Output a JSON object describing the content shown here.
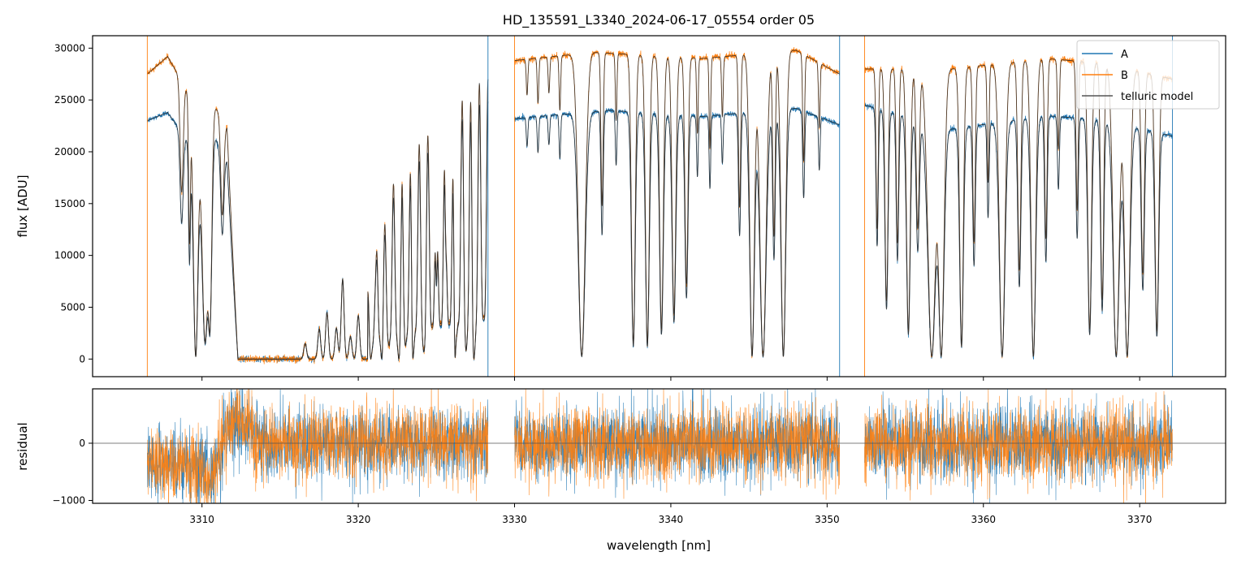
{
  "chart_data": [
    {
      "type": "line",
      "title": "HD_135591_L3340_2024-06-17_05554  order 05",
      "ylabel": "flux [ADU]",
      "xlim": [
        3303.0,
        3375.5
      ],
      "ylim": [
        -1700,
        31200
      ],
      "yticks": [
        0,
        5000,
        10000,
        15000,
        20000,
        25000,
        30000
      ],
      "ytick_labels": [
        "0",
        "5000",
        "10000",
        "15000",
        "20000",
        "25000",
        "30000"
      ],
      "legend": {
        "placement": "top-right",
        "entries": [
          "A",
          "B",
          "telluric model"
        ]
      },
      "segments": [
        [
          3306.5,
          3328.3
        ],
        [
          3330.0,
          3350.8
        ],
        [
          3352.4,
          3372.1
        ]
      ],
      "continuum": {
        "A": [
          [
            3306.5,
            23000
          ],
          [
            3307.8,
            23800
          ],
          [
            3309.2,
            20800
          ],
          [
            3310.8,
            21500
          ],
          [
            3312.3,
            17000
          ],
          [
            3330.0,
            23200
          ],
          [
            3336.0,
            24000
          ],
          [
            3342.0,
            23400
          ],
          [
            3348.0,
            24200
          ],
          [
            3350.8,
            22600
          ],
          [
            3352.4,
            24500
          ],
          [
            3358.0,
            22200
          ],
          [
            3364.0,
            23500
          ],
          [
            3368.0,
            23000
          ],
          [
            3372.1,
            21500
          ]
        ],
        "B": [
          [
            3306.5,
            27500
          ],
          [
            3307.8,
            29200
          ],
          [
            3309.2,
            25500
          ],
          [
            3310.8,
            24500
          ],
          [
            3312.3,
            20500
          ],
          [
            3330.0,
            28800
          ],
          [
            3335.0,
            29600
          ],
          [
            3342.0,
            29000
          ],
          [
            3348.0,
            29800
          ],
          [
            3350.8,
            27500
          ],
          [
            3352.4,
            28000
          ],
          [
            3358.0,
            28000
          ],
          [
            3364.0,
            29000
          ],
          [
            3368.0,
            28500
          ],
          [
            3372.1,
            27000
          ]
        ]
      },
      "absorption_lines": [
        [
          3308.7,
          0.4,
          0.1
        ],
        [
          3309.2,
          0.55,
          0.06
        ],
        [
          3309.6,
          0.99,
          0.15
        ],
        [
          3310.2,
          0.93,
          0.2
        ],
        [
          3310.5,
          0.85,
          0.12
        ],
        [
          3311.3,
          0.4,
          0.1
        ],
        [
          3328.15,
          0.99,
          0.08
        ],
        [
          3330.8,
          0.12,
          0.05
        ],
        [
          3331.5,
          0.15,
          0.05
        ],
        [
          3332.2,
          0.12,
          0.05
        ],
        [
          3332.9,
          0.18,
          0.05
        ],
        [
          3334.3,
          0.99,
          0.22
        ],
        [
          3335.6,
          0.5,
          0.07
        ],
        [
          3336.5,
          0.22,
          0.05
        ],
        [
          3337.6,
          0.95,
          0.12
        ],
        [
          3338.5,
          0.95,
          0.12
        ],
        [
          3339.4,
          0.9,
          0.12
        ],
        [
          3340.2,
          0.85,
          0.12
        ],
        [
          3341.0,
          0.75,
          0.1
        ],
        [
          3341.7,
          0.25,
          0.05
        ],
        [
          3342.5,
          0.3,
          0.05
        ],
        [
          3343.3,
          0.2,
          0.05
        ],
        [
          3344.4,
          0.5,
          0.07
        ],
        [
          3345.2,
          0.99,
          0.15
        ],
        [
          3345.9,
          0.99,
          0.2
        ],
        [
          3346.6,
          0.6,
          0.08
        ],
        [
          3347.2,
          0.99,
          0.15
        ],
        [
          3348.5,
          0.35,
          0.06
        ],
        [
          3349.5,
          0.22,
          0.05
        ],
        [
          3353.2,
          0.55,
          0.07
        ],
        [
          3353.8,
          0.8,
          0.1
        ],
        [
          3354.5,
          0.6,
          0.08
        ],
        [
          3355.2,
          0.9,
          0.12
        ],
        [
          3355.8,
          0.55,
          0.1
        ],
        [
          3356.7,
          0.99,
          0.25
        ],
        [
          3357.3,
          0.99,
          0.18
        ],
        [
          3358.6,
          0.95,
          0.12
        ],
        [
          3359.4,
          0.6,
          0.08
        ],
        [
          3360.3,
          0.4,
          0.06
        ],
        [
          3361.2,
          0.99,
          0.18
        ],
        [
          3362.3,
          0.7,
          0.1
        ],
        [
          3363.2,
          0.99,
          0.15
        ],
        [
          3364.0,
          0.6,
          0.08
        ],
        [
          3364.8,
          0.3,
          0.06
        ],
        [
          3366.0,
          0.5,
          0.07
        ],
        [
          3366.8,
          0.9,
          0.12
        ],
        [
          3367.6,
          0.8,
          0.1
        ],
        [
          3368.5,
          0.99,
          0.2
        ],
        [
          3369.2,
          0.99,
          0.18
        ],
        [
          3370.2,
          0.7,
          0.1
        ],
        [
          3371.1,
          0.9,
          0.12
        ]
      ],
      "saturated_band": [
        3312.3,
        3320.6
      ],
      "band_lines": [
        [
          3316.6,
          1500
        ],
        [
          3317.5,
          2900
        ],
        [
          3318.0,
          4500
        ],
        [
          3318.6,
          3000
        ],
        [
          3319.0,
          7700
        ],
        [
          3319.5,
          2200
        ],
        [
          3320.0,
          4200
        ]
      ],
      "forest_lines": [
        [
          3320.6,
          0.12,
          0.08
        ],
        [
          3320.8,
          0.62,
          0.07
        ],
        [
          3321.1,
          0.15,
          0.09
        ],
        [
          3321.5,
          0.45,
          0.06
        ],
        [
          3322.0,
          0.12,
          0.09
        ],
        [
          3322.6,
          0.45,
          0.08
        ],
        [
          3323.0,
          0.25,
          0.08
        ],
        [
          3323.5,
          0.55,
          0.07
        ],
        [
          3324.2,
          0.35,
          0.08
        ],
        [
          3325.0,
          0.3,
          0.07
        ],
        [
          3325.6,
          0.2,
          0.06
        ],
        [
          3326.2,
          0.55,
          0.08
        ],
        [
          3326.9,
          0.35,
          0.07
        ],
        [
          3327.4,
          0.45,
          0.08
        ]
      ],
      "forest_envelope": [
        [
          3320.6,
          12000
        ],
        [
          3321.2,
          19000
        ],
        [
          3322.0,
          16500
        ],
        [
          3323.0,
          18500
        ],
        [
          3324.0,
          21000
        ],
        [
          3325.0,
          22500
        ],
        [
          3326.0,
          24000
        ],
        [
          3327.0,
          25500
        ],
        [
          3328.0,
          27000
        ]
      ],
      "series": [
        {
          "name": "A",
          "color": "#1f77b4",
          "noise": 280
        },
        {
          "name": "B",
          "color": "#ff7f0e",
          "noise": 320
        },
        {
          "name": "telluric model",
          "color": "#555555"
        }
      ],
      "zero_segment_edges": [
        3306.5,
        3328.3,
        3330.0,
        3350.8,
        3352.4,
        3372.1
      ]
    },
    {
      "type": "line",
      "ylabel": "residual",
      "xlabel": "wavelength [nm]",
      "xlim": [
        3303.0,
        3375.5
      ],
      "ylim": [
        -1050,
        950
      ],
      "yticks": [
        -1000,
        0
      ],
      "ytick_labels": [
        "−1000",
        "0"
      ],
      "xticks": [
        3310,
        3320,
        3330,
        3340,
        3350,
        3360,
        3370
      ],
      "xtick_labels": [
        "3310",
        "3320",
        "3330",
        "3340",
        "3350",
        "3360",
        "3370"
      ],
      "zero_line": 0,
      "residual_std": 320,
      "residual_bump": [
        [
          3309.5,
          -350
        ],
        [
          3310.6,
          -650
        ],
        [
          3311.6,
          200
        ],
        [
          3312.3,
          400
        ]
      ],
      "series": [
        {
          "name": "A",
          "color": "#1f77b4"
        },
        {
          "name": "B",
          "color": "#ff7f0e"
        }
      ]
    }
  ]
}
